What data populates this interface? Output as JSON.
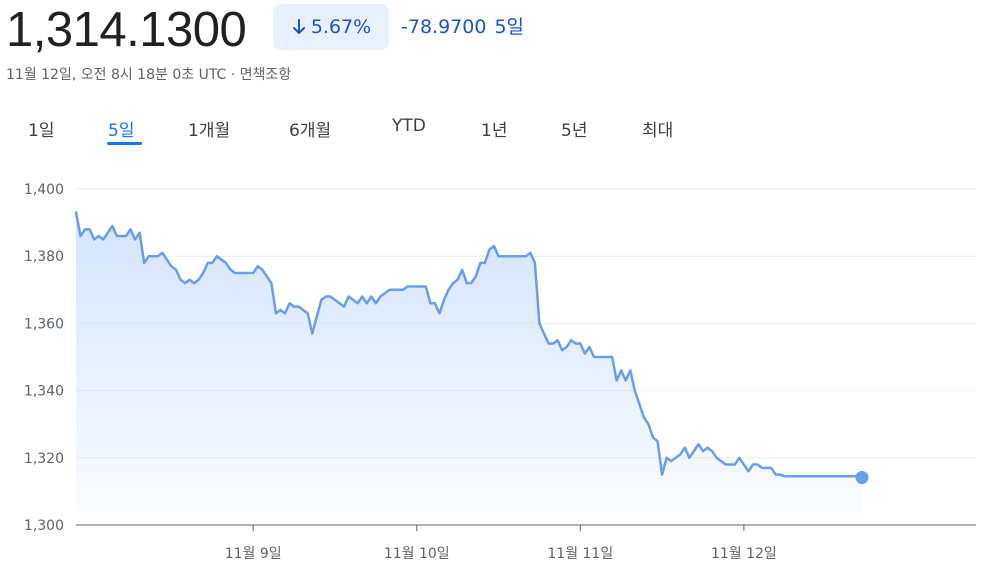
{
  "header": {
    "price": "1,314.1300",
    "change_percent": "5.67%",
    "change_value": "-78.9700",
    "change_period": "5일",
    "timestamp": "11월 12일, 오전 8시 18분 0초 UTC · 면책조항"
  },
  "tabs": [
    "1일",
    "5일",
    "1개월",
    "6개월",
    "YTD",
    "1년",
    "5년",
    "최대"
  ],
  "active_tab": "5일",
  "colors": {
    "line": "#6a9ee8",
    "fill": "#d2e3fc",
    "accent": "#1a73e8",
    "down": "#1a56c4"
  },
  "chart_data": {
    "type": "area",
    "title": "",
    "xlabel": "",
    "ylabel": "",
    "ylim": [
      1300,
      1400
    ],
    "yticks": [
      "1,300",
      "1,320",
      "1,340",
      "1,360",
      "1,380",
      "1,400"
    ],
    "xtick_labels": [
      "11월 9일",
      "11월 10일",
      "11월 11일",
      "11월 12일"
    ],
    "grid": true,
    "series": [
      {
        "values": [
          1393,
          1386,
          1388,
          1388,
          1385,
          1386,
          1385,
          1387,
          1389,
          1386,
          1386,
          1386,
          1388,
          1385,
          1387,
          1378,
          1380,
          1380,
          1380,
          1381,
          1379,
          1377,
          1376,
          1373,
          1372,
          1373,
          1372,
          1373,
          1375,
          1378,
          1378,
          1380,
          1379,
          1378,
          1376,
          1375,
          1375,
          1375,
          1375,
          1375,
          1377,
          1376,
          1374,
          1372,
          1363,
          1364,
          1363,
          1366,
          1365,
          1365,
          1364,
          1363,
          1357,
          1362,
          1367,
          1368,
          1368,
          1367,
          1366,
          1365,
          1368,
          1367,
          1366,
          1368,
          1366,
          1368,
          1366,
          1368,
          1369,
          1370,
          1370,
          1370,
          1370,
          1371,
          1371,
          1371,
          1371,
          1371,
          1366,
          1366,
          1363,
          1367,
          1370,
          1372,
          1373,
          1376,
          1372,
          1372,
          1374,
          1378,
          1378,
          1382,
          1383,
          1380,
          1380,
          1380,
          1380,
          1380,
          1380,
          1380,
          1381,
          1378,
          1360,
          1357,
          1354,
          1354,
          1355,
          1352,
          1353,
          1355,
          1354,
          1354,
          1351,
          1353,
          1350,
          1350,
          1350,
          1350,
          1350,
          1343,
          1346,
          1343,
          1346,
          1340,
          1336,
          1332,
          1330,
          1326,
          1325,
          1315,
          1320,
          1319,
          1320,
          1321,
          1323,
          1320,
          1322,
          1324,
          1322,
          1323,
          1322,
          1320,
          1319,
          1318,
          1318,
          1318,
          1320,
          1318,
          1316,
          1318,
          1318,
          1317,
          1317,
          1317,
          1315,
          1315,
          1314.5,
          1314.5,
          1314.5,
          1314.5,
          1314.5,
          1314.5,
          1314.5,
          1314.5,
          1314.5,
          1314.5,
          1314.5,
          1314.5,
          1314.5,
          1314.5,
          1314.5,
          1314.5,
          1314.5,
          1314.13
        ]
      }
    ]
  }
}
